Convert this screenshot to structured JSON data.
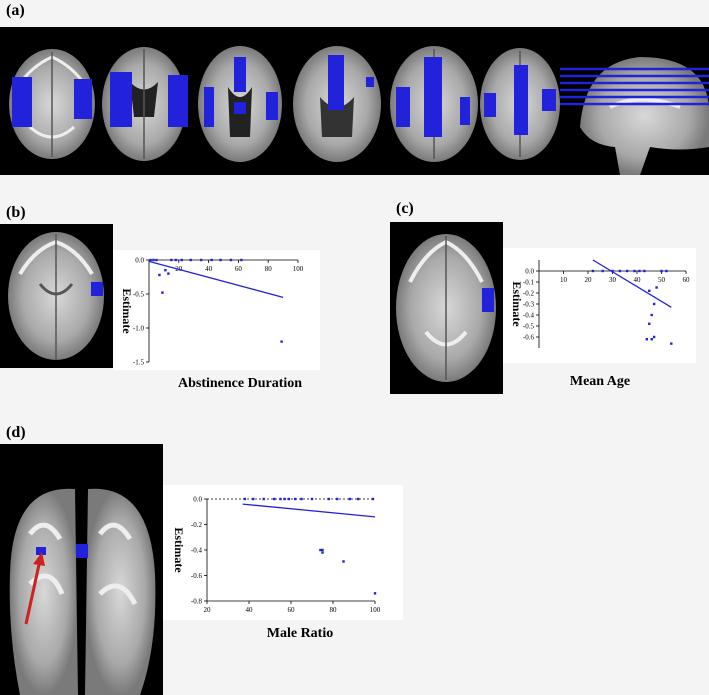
{
  "figure": {
    "panels": {
      "a": {
        "label": "(a)"
      },
      "b": {
        "label": "(b)"
      },
      "c": {
        "label": "(c)"
      },
      "d": {
        "label": "(d)"
      }
    }
  },
  "colors": {
    "highlight": "#2222dd",
    "arrow": "#cc2222",
    "background": "#f4f4f4"
  },
  "chart_data": [
    {
      "id": "b",
      "type": "scatter",
      "title": "",
      "xlabel": "Abstinence Duration",
      "ylabel": "Estimate",
      "xlim": [
        0,
        100
      ],
      "ylim": [
        -1.5,
        0
      ],
      "xticks": [
        "20",
        "40",
        "60",
        "80",
        "100"
      ],
      "yticks": [
        "0.0",
        "-0.5",
        "-1.0",
        "-1.5"
      ],
      "points": [
        [
          1,
          0
        ],
        [
          3,
          0
        ],
        [
          5,
          0
        ],
        [
          7,
          -0.22
        ],
        [
          9,
          -0.48
        ],
        [
          11,
          -0.15
        ],
        [
          13,
          -0.2
        ],
        [
          15,
          0
        ],
        [
          18,
          0
        ],
        [
          22,
          0
        ],
        [
          28,
          0
        ],
        [
          35,
          0
        ],
        [
          42,
          0
        ],
        [
          48,
          0
        ],
        [
          55,
          0
        ],
        [
          62,
          0
        ],
        [
          89,
          -1.2
        ]
      ],
      "fit": [
        [
          0,
          -0.02
        ],
        [
          90,
          -0.55
        ]
      ]
    },
    {
      "id": "c",
      "type": "scatter",
      "title": "",
      "xlabel": "Mean Age",
      "ylabel": "Estimate",
      "xlim": [
        0,
        60
      ],
      "ylim": [
        -0.7,
        0.1
      ],
      "xticks": [
        "10",
        "20",
        "30",
        "40",
        "50",
        "60"
      ],
      "yticks": [
        "0.0",
        "-0.1",
        "-0.2",
        "-0.3",
        "-0.4",
        "-0.5",
        "-0.6"
      ],
      "points": [
        [
          22,
          0
        ],
        [
          26,
          0
        ],
        [
          30,
          0
        ],
        [
          33,
          0
        ],
        [
          36,
          0
        ],
        [
          39,
          0
        ],
        [
          41,
          0
        ],
        [
          43,
          0
        ],
        [
          44,
          -0.62
        ],
        [
          45,
          -0.18
        ],
        [
          45,
          -0.48
        ],
        [
          46,
          -0.4
        ],
        [
          46,
          -0.62
        ],
        [
          47,
          -0.3
        ],
        [
          47,
          -0.6
        ],
        [
          48,
          -0.15
        ],
        [
          50,
          0
        ],
        [
          52,
          0
        ],
        [
          54,
          -0.66
        ]
      ],
      "fit": [
        [
          22,
          0.1
        ],
        [
          54,
          -0.33
        ]
      ]
    },
    {
      "id": "d",
      "type": "scatter",
      "title": "",
      "xlabel": "Male Ratio",
      "ylabel": "Estimate",
      "xlim": [
        20,
        100
      ],
      "ylim": [
        -0.8,
        0
      ],
      "xticks": [
        "20",
        "40",
        "60",
        "80",
        "100"
      ],
      "yticks": [
        "0.0",
        "-0.2",
        "-0.4",
        "-0.6",
        "-0.8"
      ],
      "points": [
        [
          38,
          0
        ],
        [
          42,
          0
        ],
        [
          47,
          0
        ],
        [
          52,
          0
        ],
        [
          55,
          0
        ],
        [
          57,
          0
        ],
        [
          59,
          0
        ],
        [
          62,
          0
        ],
        [
          65,
          0
        ],
        [
          70,
          0
        ],
        [
          74,
          -0.4
        ],
        [
          75,
          -0.4
        ],
        [
          75,
          -0.42
        ],
        [
          78,
          0
        ],
        [
          82,
          0
        ],
        [
          85,
          -0.49
        ],
        [
          88,
          0
        ],
        [
          92,
          0
        ],
        [
          99,
          0
        ],
        [
          100,
          -0.74
        ]
      ],
      "fit": [
        [
          37,
          -0.04
        ],
        [
          100,
          -0.14
        ]
      ]
    }
  ]
}
